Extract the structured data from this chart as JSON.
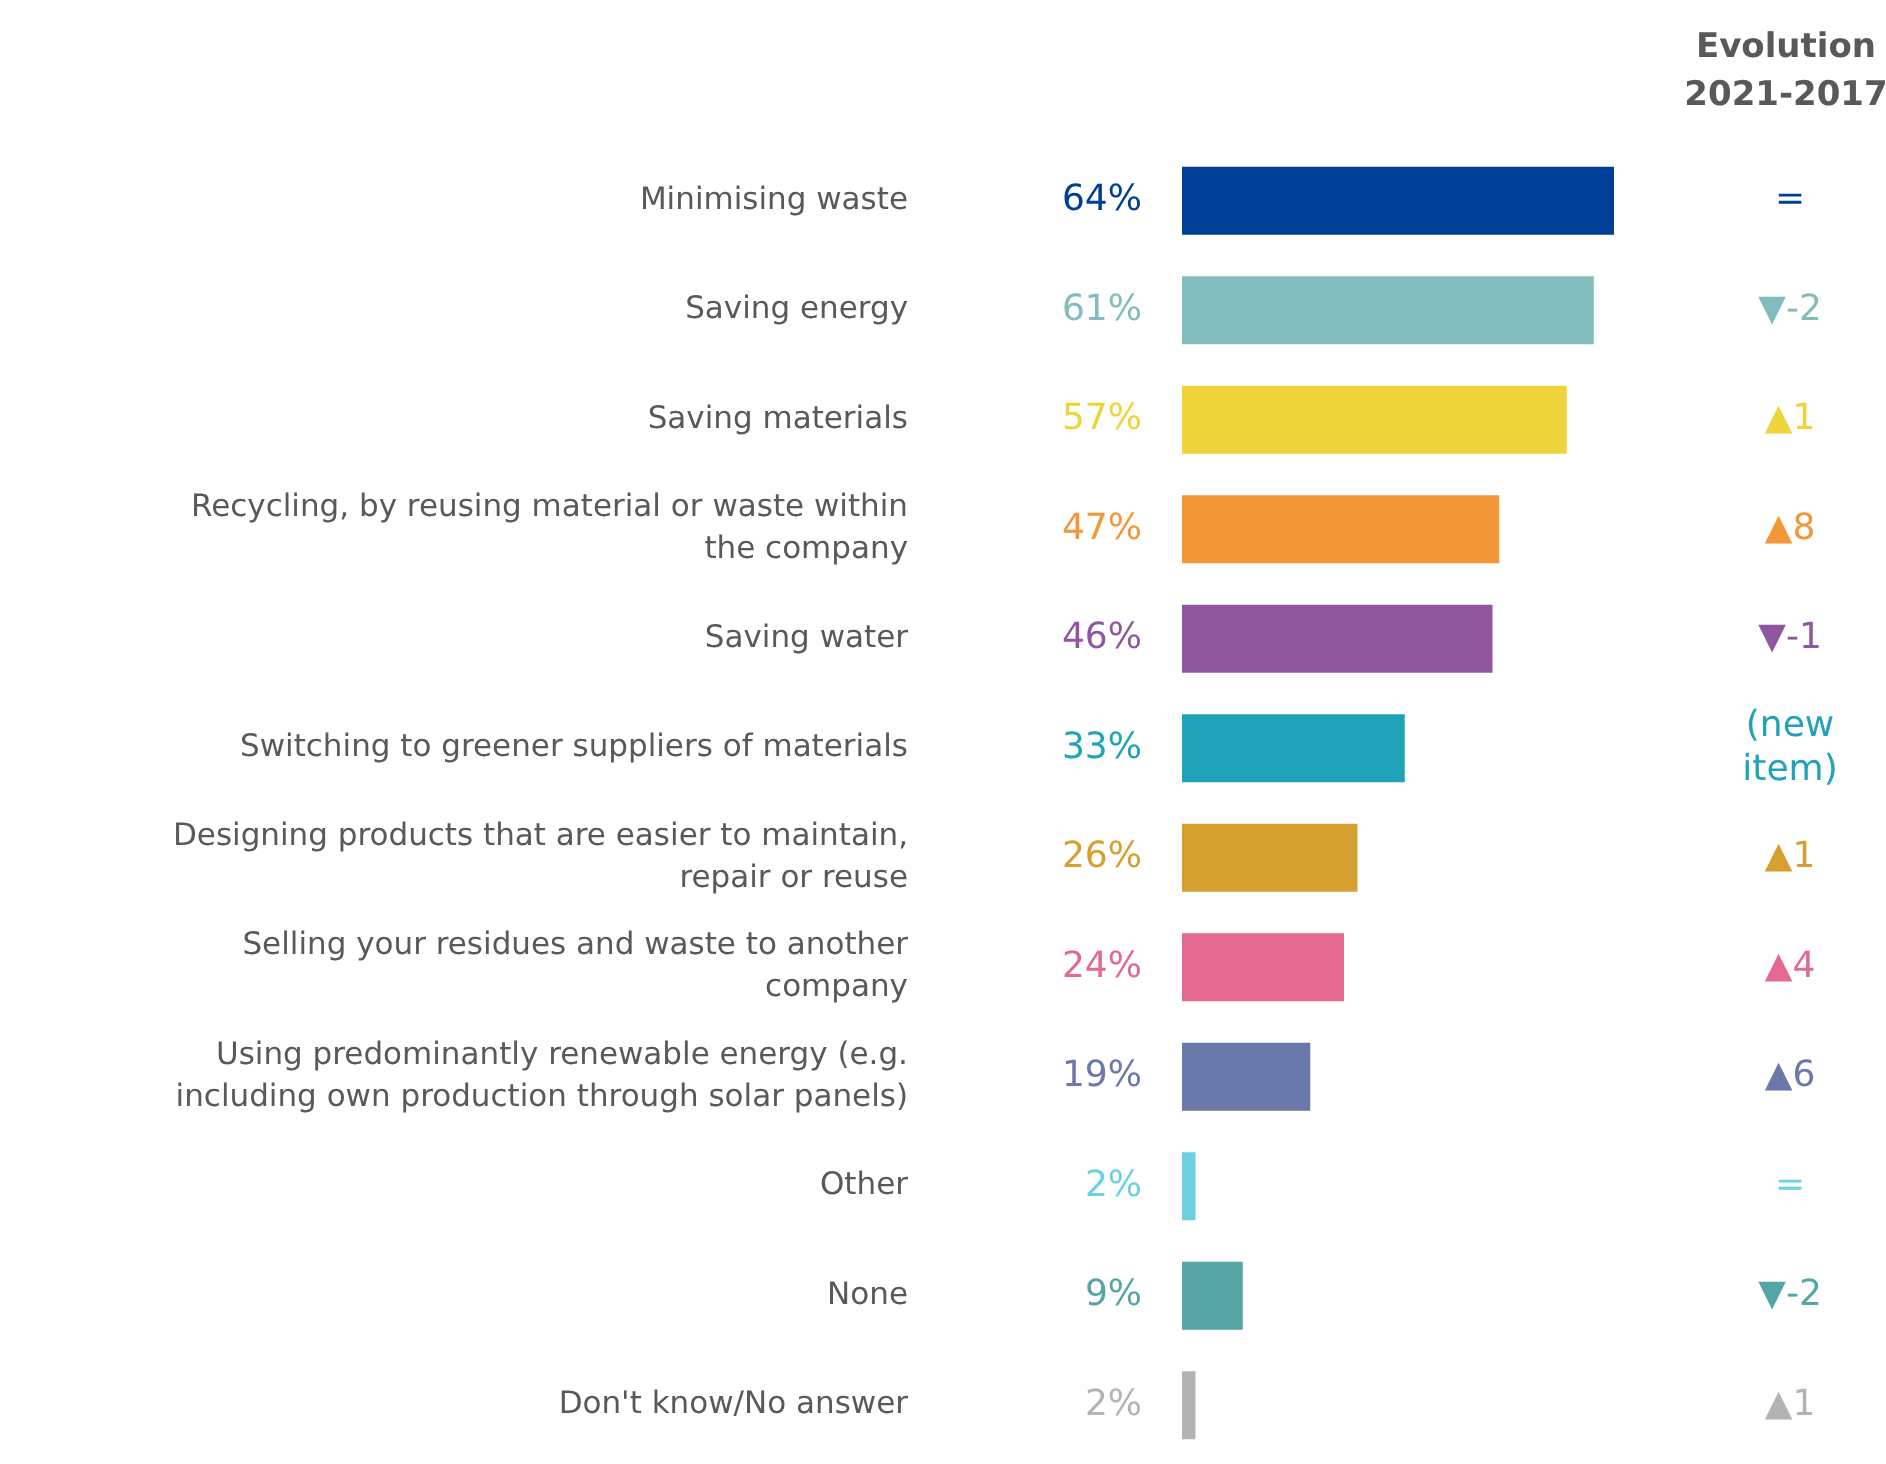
{
  "chart_data": {
    "type": "bar",
    "orientation": "horizontal",
    "categories": [
      "Minimising waste",
      "Saving energy",
      "Saving materials",
      "Recycling, by reusing material or waste within the company",
      "Saving water",
      "Switching to greener suppliers of materials",
      "Designing products that are easier to maintain, repair or reuse",
      "Selling your residues and waste to another company",
      "Using predominantly renewable energy (e.g. including own production through solar panels)",
      "Other",
      "None",
      "Don't know/No answer"
    ],
    "values": [
      64,
      61,
      57,
      47,
      46,
      33,
      26,
      24,
      19,
      2,
      9,
      2
    ],
    "colors": [
      "#003f98",
      "#82bcbc",
      "#eed43a",
      "#f29638",
      "#8f589e",
      "#20a3b8",
      "#d6a030",
      "#e4698e",
      "#6a78aa",
      "#6dd0e0",
      "#55a5a5",
      "#b3b3b3"
    ],
    "value_labels": [
      "64%",
      "61%",
      "57%",
      "47%",
      "46%",
      "33%",
      "26%",
      "24%",
      "19%",
      "2%",
      "9%",
      "2%"
    ],
    "tick_labels": "y",
    "grid": false,
    "legend": false,
    "annotations": [
      "Evolution 2021-2017",
      "=",
      "▼-2",
      "▲1",
      "▲8",
      "▼-1",
      "(new item)",
      "▲1",
      "▲4",
      "▲6",
      "=",
      "▼-2",
      "▲1"
    ]
  }
}
